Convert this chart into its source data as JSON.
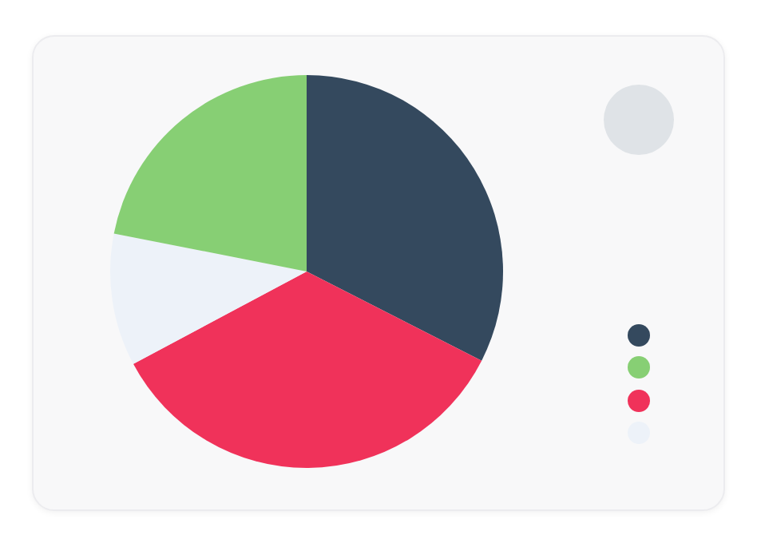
{
  "chart_data": {
    "type": "pie",
    "categories": [
      null,
      null,
      null,
      null
    ],
    "values": [
      32.5,
      34.7,
      10.9,
      21.9
    ],
    "colors": [
      "#34495e",
      "#f0325a",
      "#edf2f9",
      "#87cf74"
    ]
  }
}
